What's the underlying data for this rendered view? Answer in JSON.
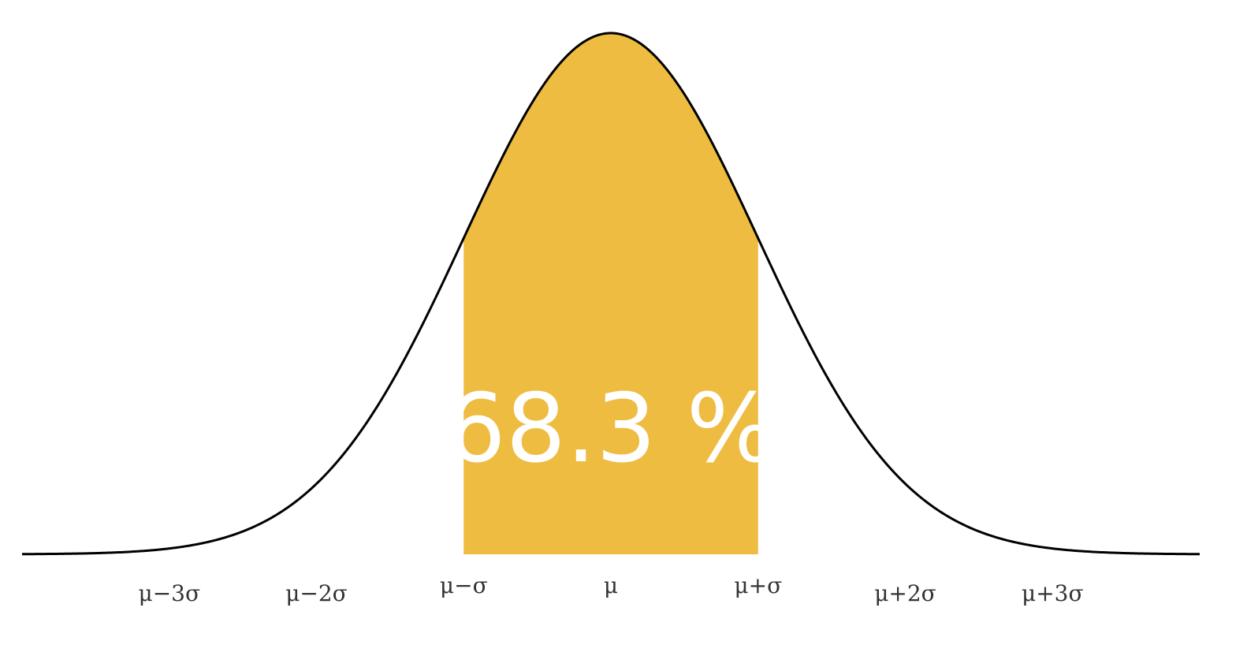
{
  "chart_data": {
    "type": "area",
    "title": "",
    "xlabel": "",
    "ylabel": "",
    "distribution": "normal",
    "mu": 0,
    "sigma": 1,
    "xlim": [
      -4,
      4
    ],
    "shaded_interval": [
      -1,
      1
    ],
    "shaded_percent_label": "68.3 %",
    "colors": {
      "fill": "#EEBC40",
      "curve": "#000000",
      "label_text": "#FFFFFF",
      "tick_text": "#333333"
    },
    "ticks": [
      {
        "x": -3,
        "label": "μ−3σ"
      },
      {
        "x": -2,
        "label": "μ−2σ"
      },
      {
        "x": -1,
        "label": "μ−σ"
      },
      {
        "x": 0,
        "label": "μ"
      },
      {
        "x": 1,
        "label": "μ+σ"
      },
      {
        "x": 2,
        "label": "μ+2σ"
      },
      {
        "x": 3,
        "label": "μ+3σ"
      }
    ],
    "grid": false,
    "legend": "none"
  }
}
